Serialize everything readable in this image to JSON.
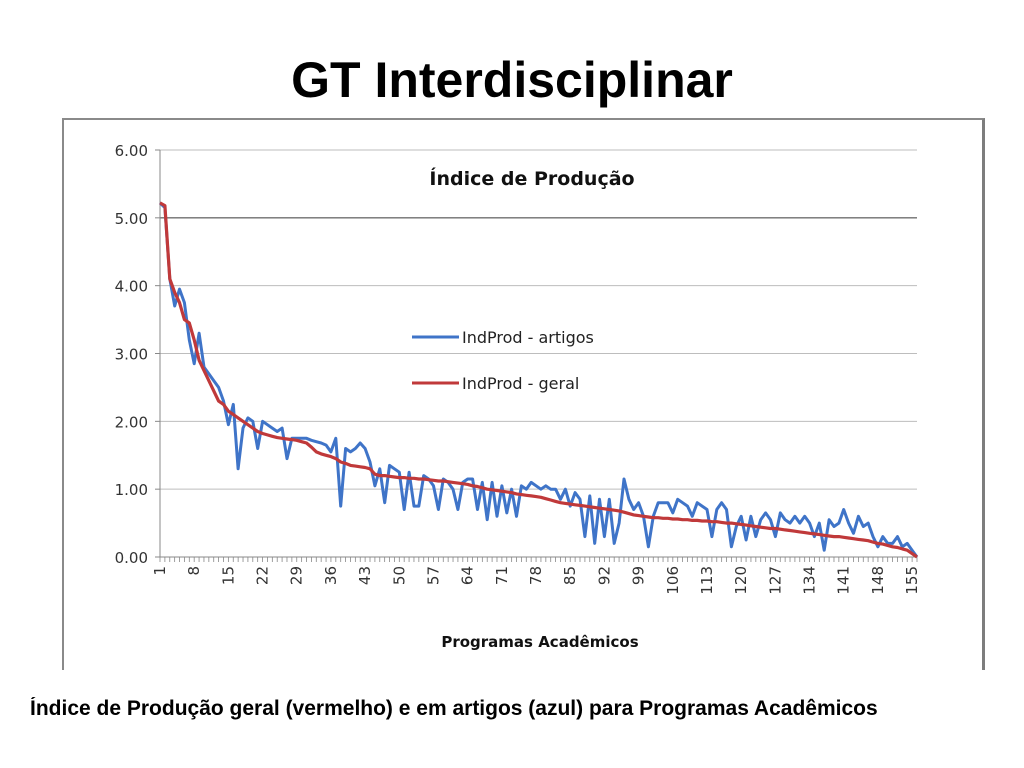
{
  "slide": {
    "title": "GT Interdisciplinar",
    "caption": "Índice de Produção geral (vermelho) e em artigos (azul) para Programas Acadêmicos"
  },
  "chart_data": {
    "type": "line",
    "title": "Índice de Produção",
    "xlabel": "Programas Acadêmicos",
    "ylabel": "",
    "ylim": [
      0,
      6
    ],
    "yticks": [
      "0.00",
      "1.00",
      "2.00",
      "3.00",
      "4.00",
      "5.00",
      "6.00"
    ],
    "x_range": [
      1,
      156
    ],
    "xtick_labels": [
      "1",
      "8",
      "15",
      "22",
      "29",
      "36",
      "43",
      "50",
      "57",
      "64",
      "71",
      "78",
      "85",
      "92",
      "99",
      "106",
      "113",
      "120",
      "127",
      "134",
      "141",
      "148",
      "155"
    ],
    "grid": "horizontal",
    "legend_position": "center",
    "series": [
      {
        "name": "IndProd - artigos",
        "color": "#3f74c8",
        "points": [
          [
            1,
            5.22
          ],
          [
            2,
            5.15
          ],
          [
            3,
            4.1
          ],
          [
            4,
            3.7
          ],
          [
            5,
            3.95
          ],
          [
            6,
            3.75
          ],
          [
            7,
            3.2
          ],
          [
            8,
            2.85
          ],
          [
            9,
            3.3
          ],
          [
            10,
            2.8
          ],
          [
            11,
            2.7
          ],
          [
            12,
            2.6
          ],
          [
            13,
            2.5
          ],
          [
            14,
            2.3
          ],
          [
            15,
            1.95
          ],
          [
            16,
            2.25
          ],
          [
            17,
            1.3
          ],
          [
            18,
            1.9
          ],
          [
            19,
            2.05
          ],
          [
            20,
            2.0
          ],
          [
            21,
            1.6
          ],
          [
            22,
            2.0
          ],
          [
            23,
            1.95
          ],
          [
            24,
            1.9
          ],
          [
            25,
            1.85
          ],
          [
            26,
            1.9
          ],
          [
            27,
            1.45
          ],
          [
            28,
            1.75
          ],
          [
            29,
            1.75
          ],
          [
            30,
            1.75
          ],
          [
            31,
            1.75
          ],
          [
            32,
            1.72
          ],
          [
            33,
            1.7
          ],
          [
            34,
            1.68
          ],
          [
            35,
            1.65
          ],
          [
            36,
            1.55
          ],
          [
            37,
            1.75
          ],
          [
            38,
            0.75
          ],
          [
            39,
            1.6
          ],
          [
            40,
            1.55
          ],
          [
            41,
            1.6
          ],
          [
            42,
            1.68
          ],
          [
            43,
            1.6
          ],
          [
            44,
            1.4
          ],
          [
            45,
            1.05
          ],
          [
            46,
            1.3
          ],
          [
            47,
            0.8
          ],
          [
            48,
            1.35
          ],
          [
            49,
            1.3
          ],
          [
            50,
            1.25
          ],
          [
            51,
            0.7
          ],
          [
            52,
            1.25
          ],
          [
            53,
            0.75
          ],
          [
            54,
            0.75
          ],
          [
            55,
            1.2
          ],
          [
            56,
            1.15
          ],
          [
            57,
            1.05
          ],
          [
            58,
            0.7
          ],
          [
            59,
            1.15
          ],
          [
            60,
            1.1
          ],
          [
            61,
            1.0
          ],
          [
            62,
            0.7
          ],
          [
            63,
            1.1
          ],
          [
            64,
            1.15
          ],
          [
            65,
            1.15
          ],
          [
            66,
            0.7
          ],
          [
            67,
            1.1
          ],
          [
            68,
            0.55
          ],
          [
            69,
            1.1
          ],
          [
            70,
            0.6
          ],
          [
            71,
            1.05
          ],
          [
            72,
            0.65
          ],
          [
            73,
            1.0
          ],
          [
            74,
            0.6
          ],
          [
            75,
            1.05
          ],
          [
            76,
            1.0
          ],
          [
            77,
            1.1
          ],
          [
            78,
            1.05
          ],
          [
            79,
            1.0
          ],
          [
            80,
            1.05
          ],
          [
            81,
            1.0
          ],
          [
            82,
            1.0
          ],
          [
            83,
            0.85
          ],
          [
            84,
            1.0
          ],
          [
            85,
            0.75
          ],
          [
            86,
            0.95
          ],
          [
            87,
            0.85
          ],
          [
            88,
            0.3
          ],
          [
            89,
            0.9
          ],
          [
            90,
            0.2
          ],
          [
            91,
            0.85
          ],
          [
            92,
            0.3
          ],
          [
            93,
            0.85
          ],
          [
            94,
            0.2
          ],
          [
            95,
            0.5
          ],
          [
            96,
            1.15
          ],
          [
            97,
            0.85
          ],
          [
            98,
            0.7
          ],
          [
            99,
            0.8
          ],
          [
            100,
            0.6
          ],
          [
            101,
            0.15
          ],
          [
            102,
            0.6
          ],
          [
            103,
            0.8
          ],
          [
            104,
            0.8
          ],
          [
            105,
            0.8
          ],
          [
            106,
            0.65
          ],
          [
            107,
            0.85
          ],
          [
            108,
            0.8
          ],
          [
            109,
            0.75
          ],
          [
            110,
            0.6
          ],
          [
            111,
            0.8
          ],
          [
            112,
            0.75
          ],
          [
            113,
            0.7
          ],
          [
            114,
            0.3
          ],
          [
            115,
            0.7
          ],
          [
            116,
            0.8
          ],
          [
            117,
            0.7
          ],
          [
            118,
            0.15
          ],
          [
            119,
            0.45
          ],
          [
            120,
            0.6
          ],
          [
            121,
            0.25
          ],
          [
            122,
            0.6
          ],
          [
            123,
            0.3
          ],
          [
            124,
            0.55
          ],
          [
            125,
            0.65
          ],
          [
            126,
            0.55
          ],
          [
            127,
            0.3
          ],
          [
            128,
            0.65
          ],
          [
            129,
            0.55
          ],
          [
            130,
            0.5
          ],
          [
            131,
            0.6
          ],
          [
            132,
            0.5
          ],
          [
            133,
            0.6
          ],
          [
            134,
            0.5
          ],
          [
            135,
            0.3
          ],
          [
            136,
            0.5
          ],
          [
            137,
            0.1
          ],
          [
            138,
            0.55
          ],
          [
            139,
            0.45
          ],
          [
            140,
            0.5
          ],
          [
            141,
            0.7
          ],
          [
            142,
            0.5
          ],
          [
            143,
            0.35
          ],
          [
            144,
            0.6
          ],
          [
            145,
            0.45
          ],
          [
            146,
            0.5
          ],
          [
            147,
            0.3
          ],
          [
            148,
            0.15
          ],
          [
            149,
            0.3
          ],
          [
            150,
            0.2
          ],
          [
            151,
            0.2
          ],
          [
            152,
            0.3
          ],
          [
            153,
            0.15
          ],
          [
            154,
            0.2
          ],
          [
            155,
            0.1
          ],
          [
            156,
            0.0
          ]
        ]
      },
      {
        "name": "IndProd - geral",
        "color": "#c0393a",
        "points": [
          [
            1,
            5.22
          ],
          [
            2,
            5.18
          ],
          [
            3,
            4.1
          ],
          [
            4,
            3.9
          ],
          [
            5,
            3.75
          ],
          [
            6,
            3.5
          ],
          [
            7,
            3.45
          ],
          [
            8,
            3.2
          ],
          [
            9,
            2.9
          ],
          [
            10,
            2.75
          ],
          [
            11,
            2.6
          ],
          [
            12,
            2.45
          ],
          [
            13,
            2.3
          ],
          [
            14,
            2.25
          ],
          [
            15,
            2.15
          ],
          [
            16,
            2.1
          ],
          [
            17,
            2.05
          ],
          [
            18,
            2.0
          ],
          [
            19,
            1.95
          ],
          [
            20,
            1.9
          ],
          [
            21,
            1.85
          ],
          [
            22,
            1.82
          ],
          [
            23,
            1.8
          ],
          [
            24,
            1.78
          ],
          [
            25,
            1.76
          ],
          [
            26,
            1.75
          ],
          [
            27,
            1.74
          ],
          [
            28,
            1.73
          ],
          [
            29,
            1.72
          ],
          [
            30,
            1.7
          ],
          [
            31,
            1.68
          ],
          [
            32,
            1.62
          ],
          [
            33,
            1.55
          ],
          [
            34,
            1.52
          ],
          [
            35,
            1.5
          ],
          [
            36,
            1.48
          ],
          [
            37,
            1.45
          ],
          [
            38,
            1.4
          ],
          [
            39,
            1.38
          ],
          [
            40,
            1.35
          ],
          [
            41,
            1.34
          ],
          [
            42,
            1.33
          ],
          [
            43,
            1.32
          ],
          [
            44,
            1.3
          ],
          [
            45,
            1.22
          ],
          [
            46,
            1.2
          ],
          [
            47,
            1.2
          ],
          [
            48,
            1.19
          ],
          [
            49,
            1.18
          ],
          [
            50,
            1.17
          ],
          [
            51,
            1.17
          ],
          [
            52,
            1.16
          ],
          [
            53,
            1.16
          ],
          [
            54,
            1.15
          ],
          [
            55,
            1.15
          ],
          [
            56,
            1.14
          ],
          [
            57,
            1.13
          ],
          [
            58,
            1.12
          ],
          [
            59,
            1.12
          ],
          [
            60,
            1.11
          ],
          [
            61,
            1.1
          ],
          [
            62,
            1.09
          ],
          [
            63,
            1.08
          ],
          [
            64,
            1.07
          ],
          [
            65,
            1.05
          ],
          [
            66,
            1.04
          ],
          [
            67,
            1.02
          ],
          [
            68,
            1.0
          ],
          [
            69,
            0.99
          ],
          [
            70,
            0.98
          ],
          [
            71,
            0.97
          ],
          [
            72,
            0.96
          ],
          [
            73,
            0.95
          ],
          [
            74,
            0.93
          ],
          [
            75,
            0.92
          ],
          [
            76,
            0.91
          ],
          [
            77,
            0.9
          ],
          [
            78,
            0.89
          ],
          [
            79,
            0.88
          ],
          [
            80,
            0.86
          ],
          [
            81,
            0.84
          ],
          [
            82,
            0.82
          ],
          [
            83,
            0.8
          ],
          [
            84,
            0.79
          ],
          [
            85,
            0.78
          ],
          [
            86,
            0.77
          ],
          [
            87,
            0.76
          ],
          [
            88,
            0.75
          ],
          [
            89,
            0.74
          ],
          [
            90,
            0.73
          ],
          [
            91,
            0.72
          ],
          [
            92,
            0.71
          ],
          [
            93,
            0.7
          ],
          [
            94,
            0.69
          ],
          [
            95,
            0.68
          ],
          [
            96,
            0.66
          ],
          [
            97,
            0.64
          ],
          [
            98,
            0.62
          ],
          [
            99,
            0.61
          ],
          [
            100,
            0.6
          ],
          [
            101,
            0.59
          ],
          [
            102,
            0.58
          ],
          [
            103,
            0.58
          ],
          [
            104,
            0.57
          ],
          [
            105,
            0.57
          ],
          [
            106,
            0.56
          ],
          [
            107,
            0.56
          ],
          [
            108,
            0.55
          ],
          [
            109,
            0.55
          ],
          [
            110,
            0.54
          ],
          [
            111,
            0.54
          ],
          [
            112,
            0.53
          ],
          [
            113,
            0.53
          ],
          [
            114,
            0.52
          ],
          [
            115,
            0.52
          ],
          [
            116,
            0.51
          ],
          [
            117,
            0.5
          ],
          [
            118,
            0.5
          ],
          [
            119,
            0.49
          ],
          [
            120,
            0.48
          ],
          [
            121,
            0.47
          ],
          [
            122,
            0.46
          ],
          [
            123,
            0.45
          ],
          [
            124,
            0.44
          ],
          [
            125,
            0.43
          ],
          [
            126,
            0.42
          ],
          [
            127,
            0.42
          ],
          [
            128,
            0.41
          ],
          [
            129,
            0.4
          ],
          [
            130,
            0.39
          ],
          [
            131,
            0.38
          ],
          [
            132,
            0.37
          ],
          [
            133,
            0.36
          ],
          [
            134,
            0.35
          ],
          [
            135,
            0.34
          ],
          [
            136,
            0.33
          ],
          [
            137,
            0.32
          ],
          [
            138,
            0.31
          ],
          [
            139,
            0.3
          ],
          [
            140,
            0.3
          ],
          [
            141,
            0.29
          ],
          [
            142,
            0.28
          ],
          [
            143,
            0.27
          ],
          [
            144,
            0.26
          ],
          [
            145,
            0.25
          ],
          [
            146,
            0.24
          ],
          [
            147,
            0.22
          ],
          [
            148,
            0.2
          ],
          [
            149,
            0.19
          ],
          [
            150,
            0.17
          ],
          [
            151,
            0.15
          ],
          [
            152,
            0.14
          ],
          [
            153,
            0.12
          ],
          [
            154,
            0.1
          ],
          [
            155,
            0.05
          ],
          [
            156,
            0.0
          ]
        ]
      }
    ]
  }
}
